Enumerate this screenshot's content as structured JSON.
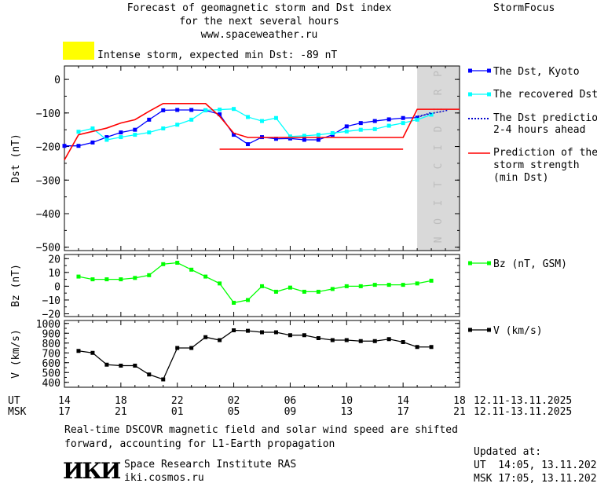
{
  "header": {
    "title_line1": "Forecast of geomagnetic storm and Dst index",
    "title_line2": "for the next several hours",
    "url": "www.spaceweather.ru",
    "brand": "StormFocus",
    "status_text": "Intense storm, expected min Dst: -89 nT",
    "status_color": "#ffff00"
  },
  "legend": {
    "dst_kyoto": "The Dst, Kyoto",
    "dst_recovered": "The recovered Dst",
    "dst_prediction_l1": "The Dst prediction",
    "dst_prediction_l2": "2-4 hours ahead",
    "storm_l1": "Prediction of the",
    "storm_l2": "storm strength",
    "storm_l3": "(min Dst)",
    "bz": "Bz (nT, GSM)",
    "v": "V (km/s)"
  },
  "prediction_label": "PREDICTION",
  "time_axis": {
    "ut_label": "UT",
    "msk_label": "MSK",
    "ut_ticks": [
      "14",
      "18",
      "22",
      "02",
      "06",
      "10",
      "14",
      "18"
    ],
    "msk_ticks": [
      "17",
      "21",
      "01",
      "05",
      "09",
      "13",
      "17",
      "21"
    ],
    "ut_range": "12.11-13.11.2025",
    "msk_range": "12.11-13.11.2025"
  },
  "footer": {
    "note_line1": "Real-time DSCOVR magnetic field and solar wind speed are shifted",
    "note_line2": "forward, accounting for L1-Earth propagation",
    "logo_text": "ИКИ",
    "institute": "Space Research Institute RAS",
    "site": "iki.cosmos.ru",
    "updated_label": "Updated at:",
    "updated_ut": "UT  14:05, 13.11.2025",
    "updated_msk": "MSK 17:05, 13.11.2025"
  },
  "chart_data": [
    {
      "type": "line",
      "ylabel": "Dst (nT)",
      "ylim": [
        -510,
        40
      ],
      "yticks": [
        0,
        -100,
        -200,
        -300,
        -400,
        -500
      ],
      "xlim": [
        0,
        28
      ],
      "prediction_region": [
        25,
        28
      ],
      "series": [
        {
          "name": "The Dst, Kyoto",
          "color": "#0000ff",
          "x": [
            0,
            1,
            2,
            3,
            4,
            5,
            6,
            7,
            8,
            9,
            10,
            11,
            12,
            13,
            14,
            15,
            16,
            17,
            18,
            19,
            20,
            21,
            22,
            23,
            24,
            25
          ],
          "y": [
            -198,
            -198,
            -188,
            -172,
            -158,
            -150,
            -120,
            -92,
            -91,
            -91,
            -92,
            -104,
            -165,
            -193,
            -172,
            -177,
            -176,
            -180,
            -180,
            -165,
            -140,
            -130,
            -124,
            -119,
            -115,
            -114
          ]
        },
        {
          "name": "The recovered Dst",
          "color": "#00ffff",
          "x": [
            1,
            2,
            3,
            4,
            5,
            6,
            7,
            8,
            9,
            10,
            11,
            12,
            13,
            14,
            15,
            16,
            17,
            18,
            19,
            20,
            21,
            22,
            23,
            24,
            25,
            26
          ],
          "y": [
            -156,
            -146,
            -180,
            -172,
            -165,
            -158,
            -146,
            -135,
            -120,
            -92,
            -90,
            -88,
            -112,
            -124,
            -115,
            -170,
            -168,
            -165,
            -160,
            -155,
            -150,
            -148,
            -138,
            -130,
            -120,
            -105
          ]
        },
        {
          "name": "The Dst prediction 2-4 hours ahead",
          "color": "#0000cc",
          "x": [
            25,
            26
          ],
          "y": [
            -114,
            -98
          ]
        },
        {
          "name": "Prediction of the storm strength (min Dst)",
          "color": "#ff0000",
          "x": [
            0,
            1,
            2,
            3,
            4,
            5,
            6,
            7,
            8,
            9,
            10,
            11,
            12,
            13,
            14,
            15,
            16,
            17,
            18,
            19,
            20,
            21,
            22,
            23,
            24,
            25,
            26,
            27,
            28
          ],
          "y": [
            -240,
            -165,
            -155,
            -145,
            -130,
            -120,
            -95,
            -72,
            -72,
            -72,
            -72,
            -110,
            -160,
            -173,
            -173,
            -173,
            -173,
            -173,
            -173,
            -173,
            -173,
            -173,
            -173,
            -173,
            -173,
            -89,
            -89,
            -89,
            -89
          ]
        },
        {
          "name": "storm-floor",
          "color": "#ff0000",
          "x": [
            11,
            24
          ],
          "y": [
            -208,
            -208
          ]
        }
      ]
    },
    {
      "type": "line",
      "ylabel": "Bz (nT)",
      "ylim": [
        -22,
        23
      ],
      "yticks": [
        20,
        10,
        0,
        -10,
        -20
      ],
      "xlim": [
        0,
        28
      ],
      "series": [
        {
          "name": "Bz (nT, GSM)",
          "color": "#00ff00",
          "x": [
            1,
            2,
            3,
            4,
            5,
            6,
            7,
            8,
            9,
            10,
            11,
            12,
            13,
            14,
            15,
            16,
            17,
            18,
            19,
            20,
            21,
            22,
            23,
            24,
            25,
            26
          ],
          "y": [
            7,
            5,
            5,
            5,
            6,
            8,
            16,
            17,
            12,
            7,
            2,
            -12,
            -10,
            0,
            -4,
            -1,
            -4,
            -4,
            -2,
            0,
            0,
            1,
            1,
            1,
            2,
            4
          ]
        }
      ]
    },
    {
      "type": "line",
      "ylabel": "V (km/s)",
      "ylim": [
        350,
        1030
      ],
      "yticks": [
        1000,
        900,
        800,
        700,
        600,
        500,
        400
      ],
      "xlim": [
        0,
        28
      ],
      "series": [
        {
          "name": "V (km/s)",
          "color": "#000000",
          "x": [
            1,
            2,
            3,
            4,
            5,
            6,
            7,
            8,
            9,
            10,
            11,
            12,
            13,
            14,
            15,
            16,
            17,
            18,
            19,
            20,
            21,
            22,
            23,
            24,
            25,
            26
          ],
          "y": [
            720,
            700,
            580,
            570,
            570,
            480,
            430,
            750,
            750,
            860,
            830,
            930,
            925,
            910,
            910,
            880,
            880,
            850,
            830,
            830,
            820,
            820,
            840,
            810,
            760,
            760
          ]
        }
      ]
    }
  ]
}
